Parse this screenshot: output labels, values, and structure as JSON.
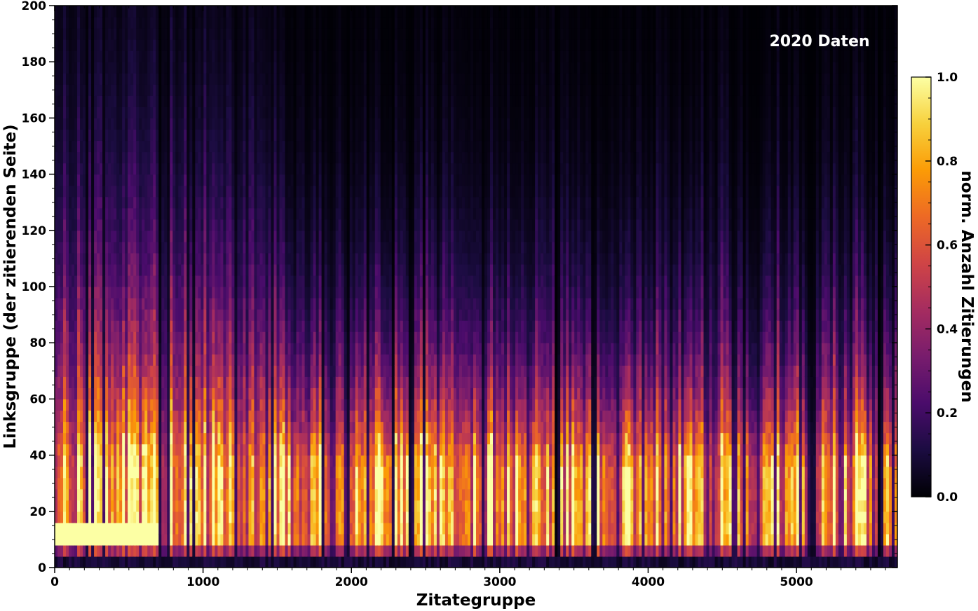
{
  "chart_data": {
    "type": "heatmap",
    "annotation": "2020 Daten",
    "xlabel": "Zitategruppe",
    "ylabel": "Linksgruppe (der zitierenden Seite)",
    "colorbar_label": "norm. Anzahl Zitierungen",
    "xlim": [
      0,
      5680
    ],
    "ylim": [
      0,
      200
    ],
    "x_ticks": [
      0,
      1000,
      2000,
      3000,
      4000,
      5000
    ],
    "x_tick_labels": [
      "0",
      "1000",
      "2000",
      "3000",
      "4000",
      "5000"
    ],
    "y_ticks": [
      0,
      20,
      40,
      60,
      80,
      100,
      120,
      140,
      160,
      180,
      200
    ],
    "y_tick_labels": [
      "0",
      "20",
      "40",
      "60",
      "80",
      "100",
      "120",
      "140",
      "160",
      "180",
      "200"
    ],
    "colorbar_range": [
      0.0,
      1.0
    ],
    "colorbar_ticks": [
      0.0,
      0.2,
      0.4,
      0.6,
      0.8,
      1.0
    ],
    "colorbar_tick_labels": [
      "0.0",
      "0.2",
      "0.4",
      "0.6",
      "0.8",
      "1.0"
    ],
    "colormap": "inferno",
    "colormap_stops": [
      "#000004",
      "#1b0c41",
      "#4a0c6b",
      "#781c6d",
      "#a52c60",
      "#cf4446",
      "#ed6925",
      "#fb9b06",
      "#f7d13d",
      "#fcffa4"
    ],
    "grid": false,
    "value_profile": {
      "description": "normalized citation count per cell; each column peaks near Linksgruppe 10-25 and decays toward 200",
      "peak_link_group_range": [
        8,
        25
      ],
      "bright_horizontal_band_at_link_group": 12,
      "bright_band_x_range": [
        0,
        700
      ],
      "low_value_rows": [
        0,
        4
      ],
      "dark_column_groups": [
        2400,
        3390,
        3630,
        5100,
        5560
      ]
    }
  }
}
